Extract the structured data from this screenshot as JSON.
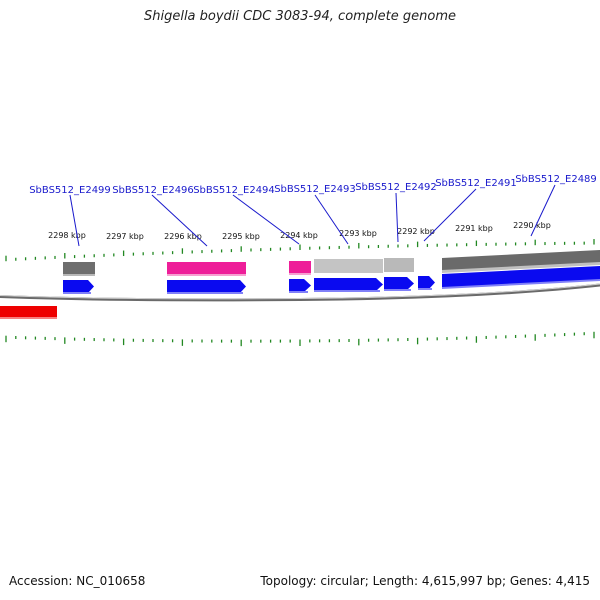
{
  "title": "Shigella boydii CDC 3083-94, complete genome",
  "footer": {
    "accession": "Accession: NC_010658",
    "summary": "Topology: circular; Length: 4,615,997 bp; Genes: 4,415"
  },
  "colors": {
    "cds_forward": "#0a0af0",
    "feature_pink": "#ee1e99",
    "feature_dark_gray": "#6e6e6e",
    "feature_light_gray": "#c4c4c4",
    "feature_red": "#ee0000",
    "backbone": "#808080",
    "tick": "#228822",
    "label_text": "#1a1acc",
    "leader_line": "#1a1acc"
  },
  "scale": {
    "unit": "kbp",
    "labels": [
      "2298 kbp",
      "2297 kbp",
      "2296 kbp",
      "2295 kbp",
      "2294 kbp",
      "2293 kbp",
      "2292 kbp",
      "2291 kbp",
      "2290 kbp"
    ]
  },
  "gene_labels": [
    "SbBS512_E2499",
    "SbBS512_E2496",
    "SbBS512_E2494",
    "SbBS512_E2493",
    "SbBS512_E2492",
    "SbBS512_E2491",
    "SbBS512_E2489"
  ]
}
